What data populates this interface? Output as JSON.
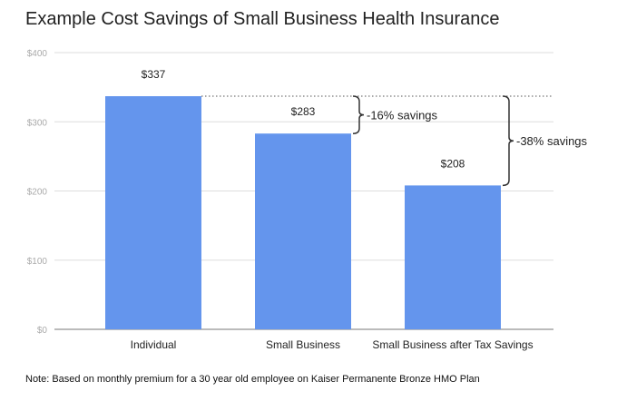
{
  "chart_data": {
    "type": "bar",
    "title": "Example Cost Savings of Small Business Health Insurance",
    "categories": [
      "Individual",
      "Small Business",
      "Small Business after Tax Savings"
    ],
    "values": [
      337,
      283,
      208
    ],
    "data_labels": [
      "$337",
      "$283",
      "$208"
    ],
    "yticks": [
      "$0",
      "$100",
      "$200",
      "$300",
      "$400"
    ],
    "ylim": [
      0,
      400
    ],
    "xlabel": "",
    "ylabel": "",
    "grid": true,
    "bar_color": "#6495ED",
    "annotations": [
      "16% savings",
      "38% savings"
    ]
  },
  "note": "Note: Based on monthly premium for a 30 year old employee on Kaiser Permanente Bronze HMO Plan"
}
